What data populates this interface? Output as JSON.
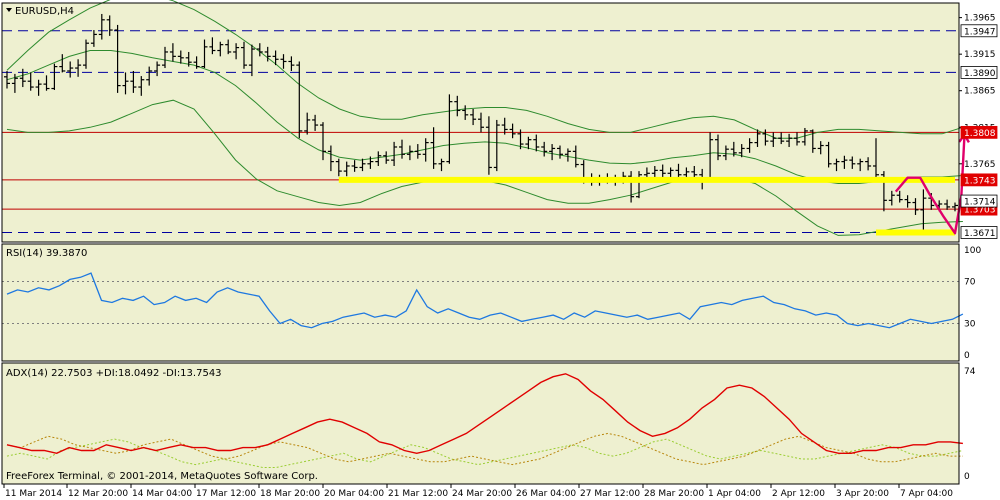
{
  "chart_data": {
    "type": "candlestick",
    "symbol_label": "EURUSD,H4",
    "copyright": "FreeForex Terminal, © 2001-2014, MetaQuotes Software Corp.",
    "price_axis": {
      "ylim": [
        1.3658,
        1.3985
      ],
      "ticks": [
        "1.3965",
        "1.3915",
        "1.3865",
        "1.3815",
        "1.3765"
      ]
    },
    "x_ticks": [
      "11 Mar 2014",
      "12 Mar 20:00",
      "14 Mar 04:00",
      "17 Mar 12:00",
      "18 Mar 20:00",
      "20 Mar 04:00",
      "21 Mar 12:00",
      "24 Mar 20:00",
      "26 Mar 04:00",
      "27 Mar 12:00",
      "28 Mar 20:00",
      "1 Apr 04:00",
      "2 Apr 12:00",
      "3 Apr 20:00",
      "7 Apr 04:00"
    ],
    "horizontal_lines": [
      {
        "label": "1.3947",
        "value": 1.3947,
        "style": "dashed",
        "color": "#0000A0",
        "tag_bg": "#FFFFFF",
        "tag_fg": "#000000"
      },
      {
        "label": "1.3890",
        "value": 1.389,
        "style": "dashed",
        "color": "#0000A0",
        "tag_bg": "#FFFFFF",
        "tag_fg": "#000000"
      },
      {
        "label": "1.3808",
        "value": 1.3808,
        "style": "solid",
        "color": "#C00000",
        "tag_bg": "#E00000",
        "tag_fg": "#FFFFFF"
      },
      {
        "label": "1.3743",
        "value": 1.3743,
        "style": "solid",
        "color": "#C00000",
        "tag_bg": "#E00000",
        "tag_fg": "#FFFFFF"
      },
      {
        "label": "1.3703",
        "value": 1.3703,
        "style": "solid",
        "color": "#C00000",
        "tag_bg": "#E00000",
        "tag_fg": "#FFFFFF"
      },
      {
        "label": "1.3671",
        "value": 1.3671,
        "style": "dashed",
        "color": "#0000A0",
        "tag_bg": "#FFFFFF",
        "tag_fg": "#000000"
      }
    ],
    "current_price": {
      "label": "1.3714",
      "value": 1.3714
    },
    "highlight_zones": [
      {
        "value": 1.3743,
        "from_bar": 42,
        "to_bar": 120,
        "color": "#FFFF00"
      },
      {
        "value": 1.3671,
        "from_bar": 110,
        "to_bar": 120,
        "color": "#FFFF00"
      }
    ],
    "forecast_path": {
      "color": "#E0006A",
      "points": [
        [
          112.5,
          1.3727
        ],
        [
          114.0,
          1.3746
        ],
        [
          115.6,
          1.3746
        ],
        [
          116.8,
          1.3723
        ],
        [
          118.6,
          1.3692
        ],
        [
          120.0,
          1.367
        ],
        [
          120.8,
          1.372
        ],
        [
          121.2,
          1.3805
        ]
      ]
    },
    "ohlc": [
      [
        1.3884,
        1.3892,
        1.3868,
        1.3875
      ],
      [
        1.3875,
        1.3888,
        1.3862,
        1.3882
      ],
      [
        1.3882,
        1.3895,
        1.387,
        1.3878
      ],
      [
        1.3878,
        1.389,
        1.3865,
        1.387
      ],
      [
        1.387,
        1.388,
        1.3858,
        1.3874
      ],
      [
        1.3874,
        1.3886,
        1.3865,
        1.3868
      ],
      [
        1.3868,
        1.3902,
        1.3866,
        1.3898
      ],
      [
        1.3898,
        1.3915,
        1.389,
        1.3892
      ],
      [
        1.3892,
        1.3905,
        1.3883,
        1.3896
      ],
      [
        1.3896,
        1.3908,
        1.3884,
        1.39
      ],
      [
        1.39,
        1.3935,
        1.3895,
        1.393
      ],
      [
        1.393,
        1.3948,
        1.3925,
        1.3942
      ],
      [
        1.3942,
        1.397,
        1.3935,
        1.3962
      ],
      [
        1.3962,
        1.3968,
        1.394,
        1.3948
      ],
      [
        1.3948,
        1.3955,
        1.3862,
        1.3872
      ],
      [
        1.3872,
        1.389,
        1.386,
        1.3878
      ],
      [
        1.3878,
        1.3892,
        1.3862,
        1.387
      ],
      [
        1.387,
        1.3885,
        1.3858,
        1.388
      ],
      [
        1.388,
        1.3898,
        1.3872,
        1.3892
      ],
      [
        1.3892,
        1.3905,
        1.3885,
        1.39
      ],
      [
        1.39,
        1.3925,
        1.3896,
        1.3918
      ],
      [
        1.3918,
        1.393,
        1.3905,
        1.3912
      ],
      [
        1.3912,
        1.392,
        1.3902,
        1.391
      ],
      [
        1.391,
        1.3918,
        1.3898,
        1.3904
      ],
      [
        1.3904,
        1.3912,
        1.3895,
        1.3898
      ],
      [
        1.3898,
        1.3935,
        1.3896,
        1.3925
      ],
      [
        1.3925,
        1.3938,
        1.3915,
        1.392
      ],
      [
        1.392,
        1.3932,
        1.3912,
        1.3928
      ],
      [
        1.3928,
        1.3935,
        1.3915,
        1.3918
      ],
      [
        1.3918,
        1.393,
        1.3908,
        1.3924
      ],
      [
        1.3924,
        1.3932,
        1.3895,
        1.39
      ],
      [
        1.39,
        1.3928,
        1.3885,
        1.3922
      ],
      [
        1.3922,
        1.393,
        1.3912,
        1.3918
      ],
      [
        1.3918,
        1.3925,
        1.3905,
        1.3912
      ],
      [
        1.3912,
        1.392,
        1.39,
        1.3908
      ],
      [
        1.3908,
        1.3915,
        1.3895,
        1.3905
      ],
      [
        1.3905,
        1.3912,
        1.3892,
        1.39
      ],
      [
        1.39,
        1.3905,
        1.38,
        1.381
      ],
      [
        1.381,
        1.3835,
        1.3805,
        1.3825
      ],
      [
        1.3825,
        1.3832,
        1.381,
        1.3818
      ],
      [
        1.3818,
        1.3822,
        1.377,
        1.3782
      ],
      [
        1.3782,
        1.379,
        1.3755,
        1.3768
      ],
      [
        1.3768,
        1.3772,
        1.3748,
        1.3755
      ],
      [
        1.3755,
        1.3768,
        1.3748,
        1.3762
      ],
      [
        1.3762,
        1.377,
        1.3754,
        1.376
      ],
      [
        1.376,
        1.3772,
        1.3755,
        1.3765
      ],
      [
        1.3765,
        1.3775,
        1.3758,
        1.3768
      ],
      [
        1.3768,
        1.3782,
        1.3762,
        1.3776
      ],
      [
        1.3776,
        1.3782,
        1.3765,
        1.377
      ],
      [
        1.377,
        1.3795,
        1.3762,
        1.3788
      ],
      [
        1.3788,
        1.3798,
        1.3772,
        1.3778
      ],
      [
        1.3778,
        1.379,
        1.377,
        1.3782
      ],
      [
        1.3782,
        1.3792,
        1.3772,
        1.3778
      ],
      [
        1.3778,
        1.38,
        1.3768,
        1.3794
      ],
      [
        1.3794,
        1.3815,
        1.3758,
        1.3765
      ],
      [
        1.3765,
        1.3772,
        1.3755,
        1.3768
      ],
      [
        1.3768,
        1.386,
        1.3765,
        1.385
      ],
      [
        1.385,
        1.3858,
        1.383,
        1.3838
      ],
      [
        1.3838,
        1.3845,
        1.3825,
        1.3832
      ],
      [
        1.3832,
        1.384,
        1.3818,
        1.3826
      ],
      [
        1.3826,
        1.3835,
        1.3808,
        1.3815
      ],
      [
        1.3815,
        1.383,
        1.375,
        1.376
      ],
      [
        1.376,
        1.3825,
        1.3755,
        1.3818
      ],
      [
        1.3818,
        1.3828,
        1.3805,
        1.3812
      ],
      [
        1.3812,
        1.382,
        1.38,
        1.3806
      ],
      [
        1.3806,
        1.3812,
        1.3785,
        1.3792
      ],
      [
        1.3792,
        1.3802,
        1.3785,
        1.3798
      ],
      [
        1.3798,
        1.3805,
        1.3782,
        1.3788
      ],
      [
        1.3788,
        1.3795,
        1.3775,
        1.3782
      ],
      [
        1.3782,
        1.3792,
        1.377,
        1.3786
      ],
      [
        1.3786,
        1.379,
        1.3772,
        1.3778
      ],
      [
        1.3778,
        1.3786,
        1.3768,
        1.3782
      ],
      [
        1.3782,
        1.379,
        1.376,
        1.3764
      ],
      [
        1.3764,
        1.377,
        1.3738,
        1.3745
      ],
      [
        1.3745,
        1.3752,
        1.3735,
        1.374
      ],
      [
        1.374,
        1.375,
        1.3735,
        1.3745
      ],
      [
        1.3745,
        1.3752,
        1.3738,
        1.3742
      ],
      [
        1.3742,
        1.375,
        1.3735,
        1.3746
      ],
      [
        1.3746,
        1.3754,
        1.3738,
        1.3748
      ],
      [
        1.3748,
        1.3755,
        1.3712,
        1.372
      ],
      [
        1.372,
        1.3755,
        1.3718,
        1.375
      ],
      [
        1.375,
        1.376,
        1.3742,
        1.3752
      ],
      [
        1.3752,
        1.3762,
        1.3744,
        1.3756
      ],
      [
        1.3756,
        1.3764,
        1.3746,
        1.3752
      ],
      [
        1.3752,
        1.376,
        1.3742,
        1.3756
      ],
      [
        1.3756,
        1.3765,
        1.3746,
        1.375
      ],
      [
        1.375,
        1.376,
        1.374,
        1.3754
      ],
      [
        1.3754,
        1.3762,
        1.3745,
        1.375
      ],
      [
        1.375,
        1.3758,
        1.373,
        1.3745
      ],
      [
        1.3745,
        1.3808,
        1.374,
        1.3798
      ],
      [
        1.3798,
        1.3805,
        1.377,
        1.3776
      ],
      [
        1.3776,
        1.379,
        1.377,
        1.3785
      ],
      [
        1.3785,
        1.3795,
        1.3775,
        1.378
      ],
      [
        1.378,
        1.3792,
        1.3774,
        1.3786
      ],
      [
        1.3786,
        1.38,
        1.378,
        1.3794
      ],
      [
        1.3794,
        1.3812,
        1.3788,
        1.3806
      ],
      [
        1.3806,
        1.3812,
        1.379,
        1.3796
      ],
      [
        1.3796,
        1.3808,
        1.3788,
        1.38
      ],
      [
        1.38,
        1.3808,
        1.3792,
        1.3796
      ],
      [
        1.3796,
        1.3806,
        1.3788,
        1.38
      ],
      [
        1.38,
        1.3808,
        1.379,
        1.3795
      ],
      [
        1.3795,
        1.3814,
        1.379,
        1.381
      ],
      [
        1.381,
        1.3812,
        1.378,
        1.3786
      ],
      [
        1.3786,
        1.3796,
        1.3778,
        1.379
      ],
      [
        1.379,
        1.3795,
        1.376,
        1.3765
      ],
      [
        1.3765,
        1.3772,
        1.3755,
        1.3768
      ],
      [
        1.3768,
        1.3776,
        1.3758,
        1.377
      ],
      [
        1.377,
        1.3775,
        1.3758,
        1.3765
      ],
      [
        1.3765,
        1.3772,
        1.3755,
        1.3768
      ],
      [
        1.3768,
        1.3774,
        1.3756,
        1.3762
      ],
      [
        1.3762,
        1.38,
        1.3745,
        1.375
      ],
      [
        1.375,
        1.3755,
        1.37,
        1.3715
      ],
      [
        1.3715,
        1.3728,
        1.3708,
        1.3722
      ],
      [
        1.3722,
        1.3728,
        1.3712,
        1.3716
      ],
      [
        1.3716,
        1.3722,
        1.3705,
        1.3712
      ],
      [
        1.3712,
        1.3718,
        1.3695,
        1.3702
      ],
      [
        1.3702,
        1.373,
        1.3672,
        1.3718
      ],
      [
        1.3718,
        1.3725,
        1.3702,
        1.3708
      ],
      [
        1.3708,
        1.3715,
        1.37,
        1.371
      ],
      [
        1.371,
        1.3716,
        1.3702,
        1.3706
      ],
      [
        1.3706,
        1.3712,
        1.37,
        1.3708
      ],
      [
        1.3708,
        1.372,
        1.3705,
        1.3714
      ]
    ],
    "bollinger": {
      "upper": [
        1.3893,
        1.392,
        1.3945,
        1.3962,
        1.3978,
        1.399,
        1.3998,
        1.3996,
        1.3988,
        1.3976,
        1.396,
        1.3942,
        1.3922,
        1.39,
        1.3875,
        1.3855,
        1.384,
        1.383,
        1.3826,
        1.3826,
        1.3832,
        1.3836,
        1.384,
        1.3842,
        1.3842,
        1.3838,
        1.383,
        1.382,
        1.3812,
        1.3808,
        1.3808,
        1.3815,
        1.3822,
        1.3828,
        1.383,
        1.3825,
        1.3812,
        1.38,
        1.38,
        1.3808,
        1.3812,
        1.3812,
        1.381,
        1.3808,
        1.3806,
        1.3806,
        1.3815
      ],
      "middle": [
        1.388,
        1.3888,
        1.39,
        1.3912,
        1.392,
        1.392,
        1.3916,
        1.391,
        1.3905,
        1.39,
        1.389,
        1.3872,
        1.3848,
        1.3822,
        1.38,
        1.3784,
        1.3774,
        1.377,
        1.3774,
        1.3778,
        1.3784,
        1.379,
        1.3793,
        1.3795,
        1.3793,
        1.3787,
        1.378,
        1.3775,
        1.377,
        1.3766,
        1.3765,
        1.3768,
        1.3773,
        1.3776,
        1.378,
        1.3778,
        1.3772,
        1.3762,
        1.375,
        1.3742,
        1.3738,
        1.3738,
        1.3741,
        1.3744,
        1.3747,
        1.3747,
        1.3749
      ],
      "lower": [
        1.3812,
        1.3808,
        1.3808,
        1.381,
        1.3815,
        1.3822,
        1.3834,
        1.3846,
        1.3852,
        1.384,
        1.3806,
        1.377,
        1.3744,
        1.3728,
        1.372,
        1.3712,
        1.3708,
        1.3712,
        1.3724,
        1.3734,
        1.374,
        1.3744,
        1.3745,
        1.3742,
        1.3736,
        1.3726,
        1.3716,
        1.3711,
        1.3711,
        1.3716,
        1.3722,
        1.3731,
        1.374,
        1.3744,
        1.3746,
        1.3746,
        1.3738,
        1.3721,
        1.37,
        1.368,
        1.3667,
        1.3668,
        1.3673,
        1.3678,
        1.3683,
        1.3685,
        1.3686
      ]
    },
    "rsi": {
      "label": "RSI(14) 39.3870",
      "ylim": [
        0,
        100
      ],
      "ticks": [
        "100",
        "70",
        "30",
        "0"
      ],
      "levels": [
        70,
        30
      ],
      "values": [
        58,
        62,
        60,
        64,
        62,
        66,
        72,
        74,
        78,
        52,
        50,
        54,
        52,
        56,
        48,
        50,
        56,
        52,
        54,
        50,
        60,
        64,
        60,
        58,
        56,
        42,
        30,
        34,
        28,
        26,
        30,
        32,
        36,
        38,
        40,
        36,
        38,
        36,
        42,
        62,
        46,
        40,
        44,
        40,
        36,
        34,
        38,
        40,
        36,
        32,
        34,
        36,
        38,
        34,
        40,
        36,
        42,
        40,
        38,
        36,
        38,
        34,
        36,
        38,
        40,
        34,
        46,
        48,
        50,
        48,
        52,
        54,
        56,
        50,
        48,
        44,
        42,
        38,
        40,
        38,
        30,
        28,
        30,
        28,
        26,
        30,
        34,
        32,
        30,
        32,
        34,
        39
      ]
    },
    "adx": {
      "label": "ADX(14) 22.7503 +DI:18.0492 -DI:13.7543",
      "ylim": [
        0,
        74
      ],
      "ticks": [
        "74",
        "0"
      ],
      "adx": [
        22,
        20,
        18,
        18,
        16,
        20,
        18,
        18,
        22,
        20,
        18,
        20,
        18,
        20,
        22,
        20,
        20,
        18,
        18,
        20,
        20,
        22,
        26,
        30,
        34,
        38,
        40,
        38,
        34,
        30,
        24,
        22,
        18,
        16,
        18,
        22,
        26,
        30,
        36,
        42,
        48,
        54,
        60,
        66,
        70,
        72,
        68,
        60,
        54,
        46,
        38,
        32,
        28,
        30,
        34,
        40,
        48,
        54,
        62,
        64,
        62,
        56,
        48,
        40,
        30,
        24,
        18,
        16,
        16,
        18,
        18,
        20,
        20,
        22,
        22,
        24,
        24,
        23
      ],
      "plus_di": [
        14,
        16,
        14,
        12,
        18,
        20,
        22,
        24,
        26,
        24,
        20,
        18,
        14,
        10,
        8,
        10,
        12,
        10,
        8,
        6,
        6,
        8,
        10,
        12,
        14,
        16,
        12,
        10,
        14,
        18,
        22,
        20,
        16,
        12,
        10,
        8,
        10,
        12,
        14,
        16,
        18,
        20,
        22,
        20,
        16,
        14,
        16,
        20,
        24,
        26,
        22,
        18,
        14,
        12,
        14,
        16,
        18,
        16,
        14,
        12,
        12,
        14,
        16,
        18,
        20,
        22,
        20,
        16,
        14,
        14,
        16,
        18
      ],
      "minus_di": [
        22,
        20,
        24,
        28,
        26,
        22,
        20,
        18,
        16,
        18,
        22,
        24,
        26,
        22,
        18,
        14,
        12,
        14,
        18,
        22,
        24,
        22,
        20,
        16,
        12,
        10,
        12,
        14,
        16,
        14,
        12,
        10,
        10,
        12,
        14,
        12,
        10,
        8,
        10,
        12,
        16,
        20,
        24,
        28,
        30,
        28,
        24,
        20,
        16,
        12,
        10,
        8,
        10,
        12,
        14,
        18,
        22,
        26,
        28,
        24,
        20,
        18,
        16,
        12,
        10,
        10,
        12,
        14,
        16,
        14,
        14
      ]
    },
    "colors": {
      "background": "#EEF0D0",
      "candles": "#000000",
      "bollinger": "#2E8B2E",
      "rsi_line": "#1E78E0",
      "adx_line": "#E00000",
      "plus_di": "#9ACD32",
      "minus_di": "#B8860B",
      "level_line": "#808080"
    }
  }
}
